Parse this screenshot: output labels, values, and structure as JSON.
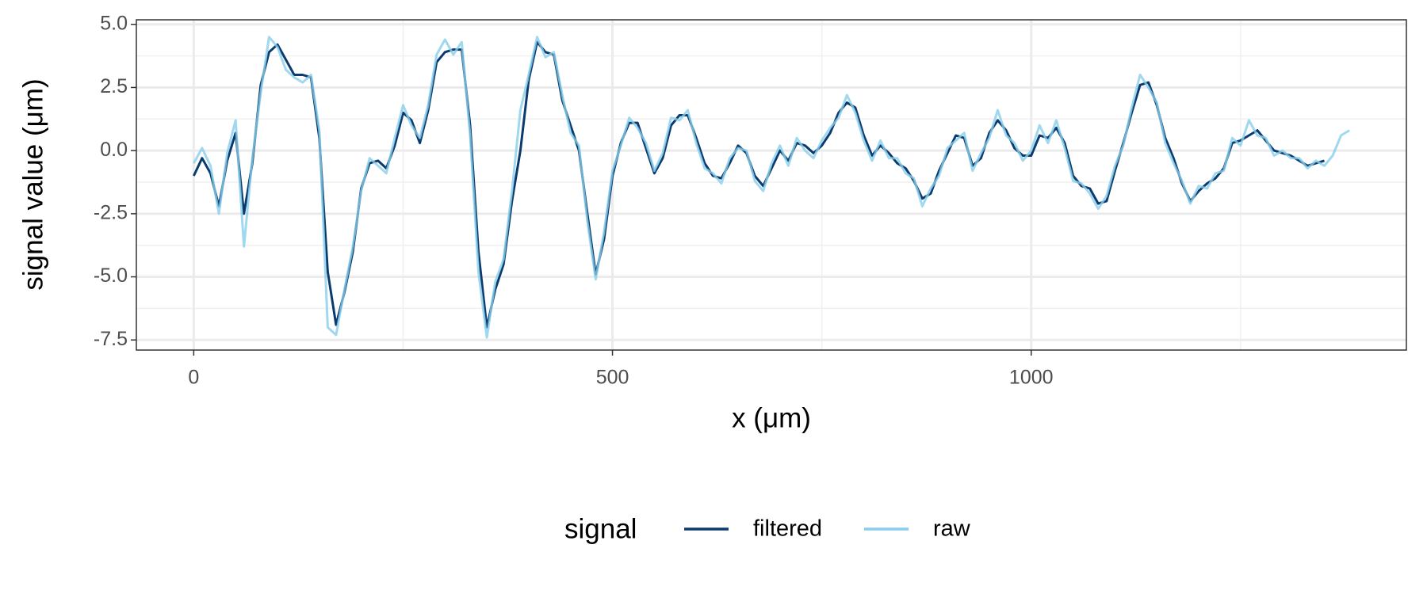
{
  "chart_data": {
    "type": "line",
    "x_label": "x (μm)",
    "y_label": "signal value (μm)",
    "legend_title": "signal",
    "legend": "bottom",
    "grid": true,
    "x": [
      0,
      10,
      20,
      30,
      40,
      50,
      60,
      70,
      80,
      90,
      100,
      110,
      120,
      130,
      140,
      150,
      160,
      170,
      180,
      190,
      200,
      210,
      220,
      230,
      240,
      250,
      260,
      270,
      280,
      290,
      300,
      310,
      320,
      330,
      340,
      350,
      360,
      370,
      380,
      390,
      400,
      410,
      420,
      430,
      440,
      450,
      460,
      470,
      480,
      490,
      500,
      510,
      520,
      530,
      540,
      550,
      560,
      570,
      580,
      590,
      600,
      610,
      620,
      630,
      640,
      650,
      660,
      670,
      680,
      690,
      700,
      710,
      720,
      730,
      740,
      750,
      760,
      770,
      780,
      790,
      800,
      810,
      820,
      830,
      840,
      850,
      860,
      870,
      880,
      890,
      900,
      910,
      920,
      930,
      940,
      950,
      960,
      970,
      980,
      990,
      1000,
      1010,
      1020,
      1030,
      1040,
      1050,
      1060,
      1070,
      1080,
      1090,
      1100,
      1110,
      1120,
      1130,
      1140,
      1150,
      1160,
      1170,
      1180,
      1190,
      1200,
      1210,
      1220,
      1230,
      1240,
      1250,
      1260,
      1270,
      1280,
      1290,
      1300,
      1310,
      1320,
      1330,
      1340,
      1350,
      1360,
      1370,
      1380
    ],
    "series": [
      {
        "name": "filtered",
        "color": "#0b3a6e",
        "values": [
          -1.0,
          -0.3,
          -0.9,
          -2.2,
          -0.4,
          0.7,
          -2.5,
          -0.5,
          2.6,
          3.9,
          4.2,
          3.6,
          3.0,
          3.0,
          2.9,
          0.5,
          -4.8,
          -6.9,
          -5.6,
          -4.0,
          -1.5,
          -0.5,
          -0.4,
          -0.7,
          0.2,
          1.5,
          1.2,
          0.3,
          1.6,
          3.5,
          3.9,
          4.0,
          4.0,
          1.0,
          -4.0,
          -7.0,
          -5.5,
          -4.5,
          -2.0,
          0.0,
          2.8,
          4.3,
          3.9,
          3.8,
          2.0,
          1.0,
          0.0,
          -2.5,
          -4.9,
          -3.5,
          -1.0,
          0.3,
          1.1,
          1.1,
          0.1,
          -0.9,
          -0.3,
          1.0,
          1.4,
          1.4,
          0.5,
          -0.5,
          -1.0,
          -1.1,
          -0.5,
          0.2,
          -0.1,
          -1.0,
          -1.4,
          -0.7,
          0.0,
          -0.4,
          0.3,
          0.2,
          -0.1,
          0.2,
          0.7,
          1.5,
          1.9,
          1.7,
          0.6,
          -0.2,
          0.2,
          -0.1,
          -0.5,
          -0.7,
          -1.2,
          -1.9,
          -1.7,
          -0.8,
          -0.1,
          0.6,
          0.5,
          -0.6,
          -0.3,
          0.7,
          1.2,
          0.8,
          0.1,
          -0.2,
          -0.2,
          0.6,
          0.5,
          0.9,
          0.3,
          -1.0,
          -1.4,
          -1.5,
          -2.1,
          -2.0,
          -0.8,
          0.3,
          1.5,
          2.6,
          2.7,
          1.8,
          0.5,
          -0.3,
          -1.3,
          -2.0,
          -1.6,
          -1.3,
          -1.1,
          -0.7,
          0.3,
          0.4,
          0.6,
          0.8,
          0.4,
          0.0,
          -0.1,
          -0.2,
          -0.4,
          -0.6,
          -0.5,
          -0.4,
          null,
          null,
          null
        ]
      },
      {
        "name": "raw",
        "color": "#87ceeb",
        "values": [
          -0.5,
          0.1,
          -0.6,
          -2.5,
          -0.1,
          1.2,
          -3.8,
          -0.3,
          2.3,
          4.5,
          4.1,
          3.2,
          2.9,
          2.7,
          3.0,
          0.8,
          -7.0,
          -7.3,
          -5.5,
          -3.8,
          -1.6,
          -0.3,
          -0.6,
          -0.9,
          0.5,
          1.8,
          1.0,
          0.5,
          1.8,
          3.8,
          4.4,
          3.8,
          4.3,
          0.6,
          -4.8,
          -7.4,
          -5.2,
          -4.3,
          -1.6,
          1.6,
          3.0,
          4.5,
          3.7,
          3.9,
          2.2,
          0.7,
          0.2,
          -2.8,
          -5.1,
          -3.2,
          -0.8,
          0.2,
          1.3,
          0.9,
          0.3,
          -0.8,
          -0.1,
          1.3,
          1.2,
          1.6,
          0.3,
          -0.7,
          -0.9,
          -1.3,
          -0.3,
          0.1,
          0.0,
          -1.2,
          -1.6,
          -0.5,
          0.2,
          -0.6,
          0.5,
          0.0,
          -0.3,
          0.4,
          0.9,
          1.3,
          2.2,
          1.5,
          0.4,
          -0.4,
          0.4,
          -0.3,
          -0.3,
          -0.9,
          -1.1,
          -2.2,
          -1.5,
          -1.0,
          0.1,
          0.4,
          0.7,
          -0.8,
          -0.1,
          0.5,
          1.6,
          0.6,
          0.3,
          -0.4,
          0.0,
          1.0,
          0.3,
          1.2,
          0.1,
          -1.2,
          -1.3,
          -1.7,
          -2.3,
          -1.8,
          -0.6,
          0.2,
          1.7,
          3.0,
          2.5,
          1.9,
          0.3,
          -0.5,
          -1.2,
          -2.1,
          -1.4,
          -1.5,
          -0.9,
          -0.8,
          0.5,
          0.2,
          1.2,
          0.6,
          0.5,
          -0.2,
          0.0,
          -0.3,
          -0.3,
          -0.7,
          -0.4,
          -0.6,
          -0.2,
          0.6,
          0.8
        ]
      }
    ],
    "xlim": [
      -68.5,
      1448
    ],
    "xticks": [
      0,
      500,
      1000
    ],
    "xminorticks": [
      250,
      750,
      1250
    ],
    "ylim": [
      -7.9,
      5.18
    ],
    "yticks": [
      {
        "value": 5,
        "label": "5.0"
      },
      2.5,
      {
        "value": 0,
        "label": "0.0"
      },
      -2.5,
      {
        "value": -5,
        "label": "-5.0"
      },
      -7.5
    ],
    "yminorticks": [
      3.75,
      1.25,
      -1.25,
      -3.75,
      -6.25
    ]
  }
}
